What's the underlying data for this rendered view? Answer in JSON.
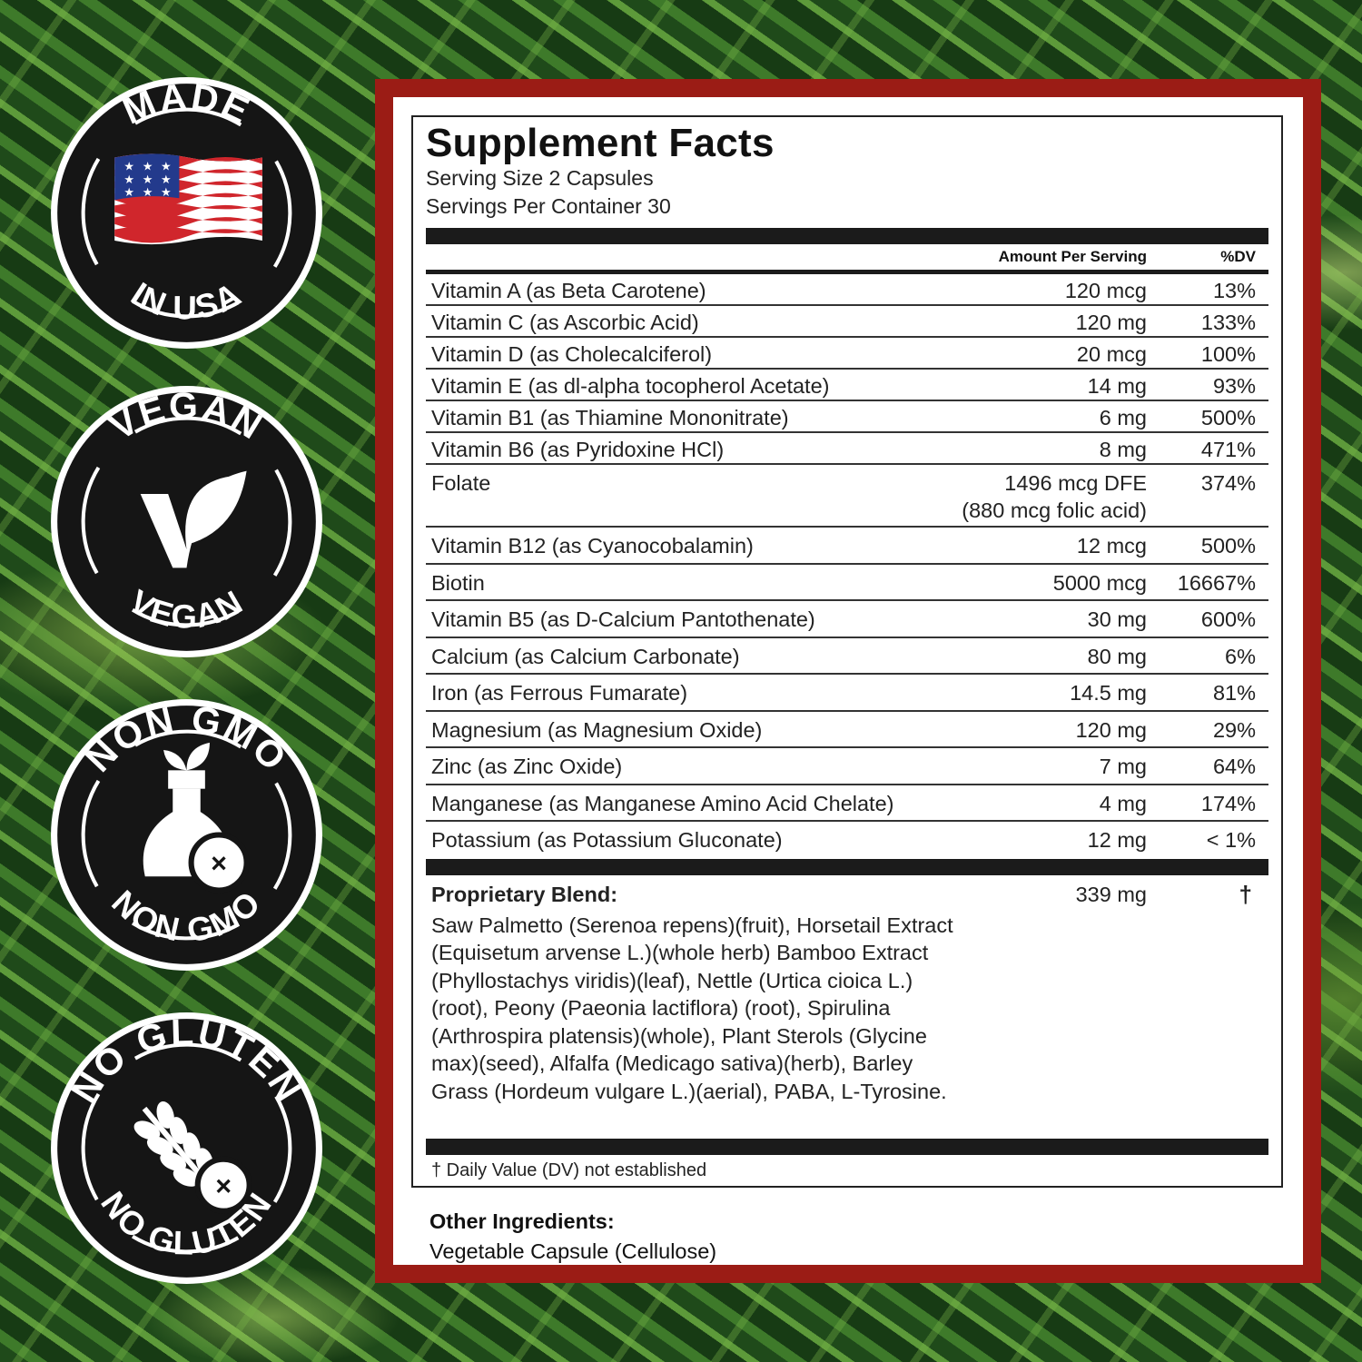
{
  "badges": [
    {
      "top": "MADE",
      "bottom": "IN USA",
      "icon": "us-flag-icon"
    },
    {
      "top": "VEGAN",
      "bottom": "VEGAN",
      "icon": "vegan-leaf-icon"
    },
    {
      "top": "NON GMO",
      "bottom": "NON GMO",
      "icon": "non-gmo-flask-icon"
    },
    {
      "top": "NO GLUTEN",
      "bottom": "NO GLUTEN",
      "icon": "no-gluten-wheat-icon"
    }
  ],
  "colors": {
    "frame": "#9b1c15",
    "badge": "#151515"
  },
  "label": {
    "title": "Supplement Facts",
    "serving_size": "Serving Size 2 Capsules",
    "servings_per_container": "Servings Per Container 30",
    "col_amount": "Amount Per Serving",
    "col_dv": "%DV",
    "rows": [
      {
        "name": "Vitamin A (as Beta Carotene)",
        "amount": "120 mcg",
        "dv": "13%"
      },
      {
        "name": "Vitamin C (as Ascorbic Acid)",
        "amount": "120 mg",
        "dv": "133%"
      },
      {
        "name": "Vitamin D (as Cholecalciferol)",
        "amount": "20 mcg",
        "dv": "100%"
      },
      {
        "name": "Vitamin E (as dl-alpha tocopherol Acetate)",
        "amount": "14 mg",
        "dv": "93%"
      },
      {
        "name": "Vitamin B1 (as Thiamine Mononitrate)",
        "amount": "6 mg",
        "dv": "500%"
      },
      {
        "name": "Vitamin B6 (as Pyridoxine HCl)",
        "amount": "8 mg",
        "dv": "471%"
      },
      {
        "name": "Folate",
        "amount": "1496 mcg DFE",
        "amount2": "(880 mcg folic acid)",
        "dv": "374%"
      },
      {
        "name": "Vitamin B12 (as Cyanocobalamin)",
        "amount": "12 mcg",
        "dv": "500%"
      },
      {
        "name": "Biotin",
        "amount": "5000 mcg",
        "dv": "16667%"
      },
      {
        "name": "Vitamin B5 (as D-Calcium Pantothenate)",
        "amount": "30 mg",
        "dv": "600%"
      },
      {
        "name": "Calcium (as Calcium Carbonate)",
        "amount": "80 mg",
        "dv": "6%"
      },
      {
        "name": "Iron (as Ferrous Fumarate)",
        "amount": "14.5 mg",
        "dv": "81%"
      },
      {
        "name": "Magnesium (as Magnesium Oxide)",
        "amount": "120 mg",
        "dv": "29%"
      },
      {
        "name": "Zinc (as Zinc Oxide)",
        "amount": "7 mg",
        "dv": "64%"
      },
      {
        "name": "Manganese (as Manganese Amino Acid Chelate)",
        "amount": "4 mg",
        "dv": "174%"
      },
      {
        "name": "Potassium (as Potassium Gluconate)",
        "amount": "12 mg",
        "dv": "< 1%"
      }
    ],
    "blend": {
      "title": "Proprietary Blend:",
      "amount": "339 mg",
      "dv": "†",
      "ingredients": "Saw Palmetto (Serenoa repens)(fruit), Horsetail Extract (Equisetum arvense L.)(whole herb) Bamboo Extract (Phyllostachys viridis)(leaf), Nettle (Urtica cioica L.)(root), Peony (Paeonia lactiflora) (root), Spirulina (Arthrospira platensis)(whole), Plant Sterols (Glycine max)(seed), Alfalfa (Medicago sativa)(herb), Barley Grass (Hordeum vulgare L.)(aerial), PABA, L-Tyrosine."
    },
    "footnote": "† Daily Value (DV) not established",
    "other_title": "Other Ingredients:",
    "other_value": "Vegetable Capsule (Cellulose)"
  }
}
